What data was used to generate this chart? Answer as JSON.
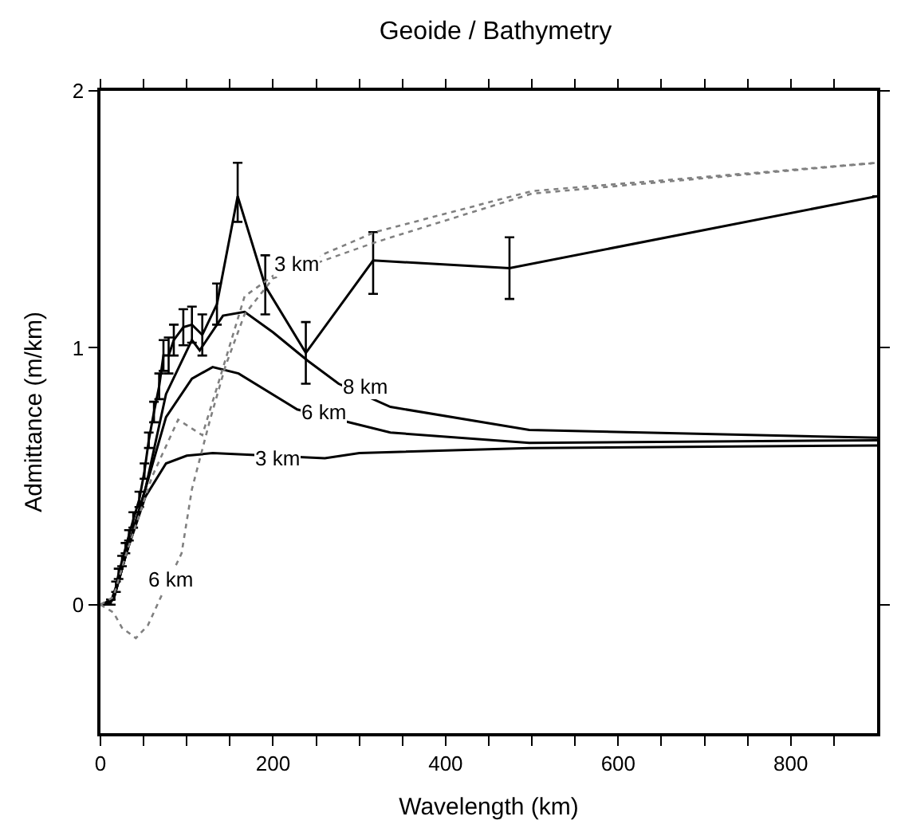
{
  "chart_data": {
    "type": "line",
    "title": "Geoide / Bathymetry",
    "xlabel": "Wavelength (km)",
    "ylabel": "Admittance (m/km)",
    "xlim": [
      0,
      900
    ],
    "ylim": [
      -0.5,
      2
    ],
    "xticks": [
      0,
      {
        "value": 50,
        "label": null
      },
      {
        "value": 100,
        "label": null
      },
      {
        "value": 150,
        "label": null
      },
      200,
      {
        "value": 250,
        "label": null
      },
      {
        "value": 300,
        "label": null
      },
      {
        "value": 350,
        "label": null
      },
      400,
      {
        "value": 450,
        "label": null
      },
      {
        "value": 500,
        "label": null
      },
      {
        "value": 550,
        "label": null
      },
      600,
      {
        "value": 650,
        "label": null
      },
      {
        "value": 700,
        "label": null
      },
      {
        "value": 750,
        "label": null
      },
      800,
      {
        "value": 850,
        "label": null
      }
    ],
    "yticks": [
      0,
      1,
      2
    ],
    "marker": "none",
    "series": [
      {
        "color": "#000000",
        "line_style": "solid",
        "x": [
          5,
          12,
          18,
          21,
          25,
          29,
          33,
          38,
          45,
          51,
          56,
          62,
          68,
          73,
          79,
          85,
          96,
          106,
          118,
          135,
          159,
          191,
          238,
          316,
          474,
          900
        ],
        "values": [
          0.0,
          0.01,
          0.07,
          0.12,
          0.17,
          0.22,
          0.27,
          0.33,
          0.41,
          0.52,
          0.64,
          0.75,
          0.85,
          0.97,
          0.97,
          1.03,
          1.08,
          1.09,
          1.05,
          1.17,
          1.59,
          1.24,
          0.98,
          1.34,
          1.31,
          1.59
        ],
        "errors": [
          null,
          0.01,
          0.02,
          0.02,
          0.02,
          0.02,
          0.02,
          0.03,
          0.03,
          0.03,
          0.03,
          0.04,
          0.05,
          0.06,
          0.07,
          0.06,
          0.07,
          0.07,
          0.08,
          0.08,
          [
            1.49,
            1.72
          ],
          [
            1.13,
            1.36
          ],
          [
            0.86,
            1.1
          ],
          [
            1.21,
            1.45
          ],
          [
            1.19,
            1.43
          ],
          null
        ]
      },
      {
        "color": "#000000",
        "line_style": "solid",
        "x": [
          0,
          15,
          30,
          52,
          76,
          100,
          130,
          260,
          300,
          497,
          900
        ],
        "values": [
          0,
          0.02,
          0.2,
          0.42,
          0.55,
          0.58,
          0.59,
          0.57,
          0.59,
          0.61,
          0.62
        ]
      },
      {
        "color": "#000000",
        "line_style": "solid",
        "x": [
          0,
          15,
          30,
          52,
          76,
          106,
          130,
          160,
          228,
          336,
          497,
          900
        ],
        "values": [
          0,
          0.02,
          0.2,
          0.45,
          0.73,
          0.88,
          0.925,
          0.9,
          0.76,
          0.67,
          0.63,
          0.64
        ]
      },
      {
        "color": "#000000",
        "line_style": "solid",
        "x": [
          0,
          15,
          30,
          52,
          76,
          106,
          115,
          142,
          167,
          200,
          240,
          276,
          336,
          497,
          900
        ],
        "values": [
          0,
          0.02,
          0.2,
          0.45,
          0.82,
          1.03,
          0.99,
          1.125,
          1.14,
          1.06,
          0.95,
          0.86,
          0.77,
          0.68,
          0.65
        ]
      },
      {
        "color": "#808080",
        "line_style": "dotted",
        "x": [
          0,
          15,
          30,
          60,
          90,
          118,
          140,
          167,
          200,
          318,
          500,
          900
        ],
        "values": [
          0,
          0.03,
          0.2,
          0.5,
          0.72,
          0.66,
          0.9,
          1.2,
          1.28,
          1.45,
          1.61,
          1.72
        ]
      },
      {
        "color": "#808080",
        "line_style": "dotted",
        "x": [
          0,
          15,
          25,
          41,
          55,
          70,
          94,
          106,
          127,
          145,
          167,
          200,
          318,
          500,
          900
        ],
        "values": [
          0,
          -0.03,
          -0.09,
          -0.13,
          -0.08,
          0.03,
          0.2,
          0.45,
          0.72,
          0.93,
          1.13,
          1.27,
          1.41,
          1.6,
          1.72
        ]
      }
    ],
    "annotations": [
      {
        "text": "3 km",
        "x": 227,
        "y": 1.33
      },
      {
        "text": "8 km",
        "x": 306,
        "y": 0.85
      },
      {
        "text": "6 km",
        "x": 258,
        "y": 0.75
      },
      {
        "text": "3 km",
        "x": 206,
        "y": 0.57
      },
      {
        "text": "6 km",
        "x": 82,
        "y": 0.1
      }
    ]
  }
}
